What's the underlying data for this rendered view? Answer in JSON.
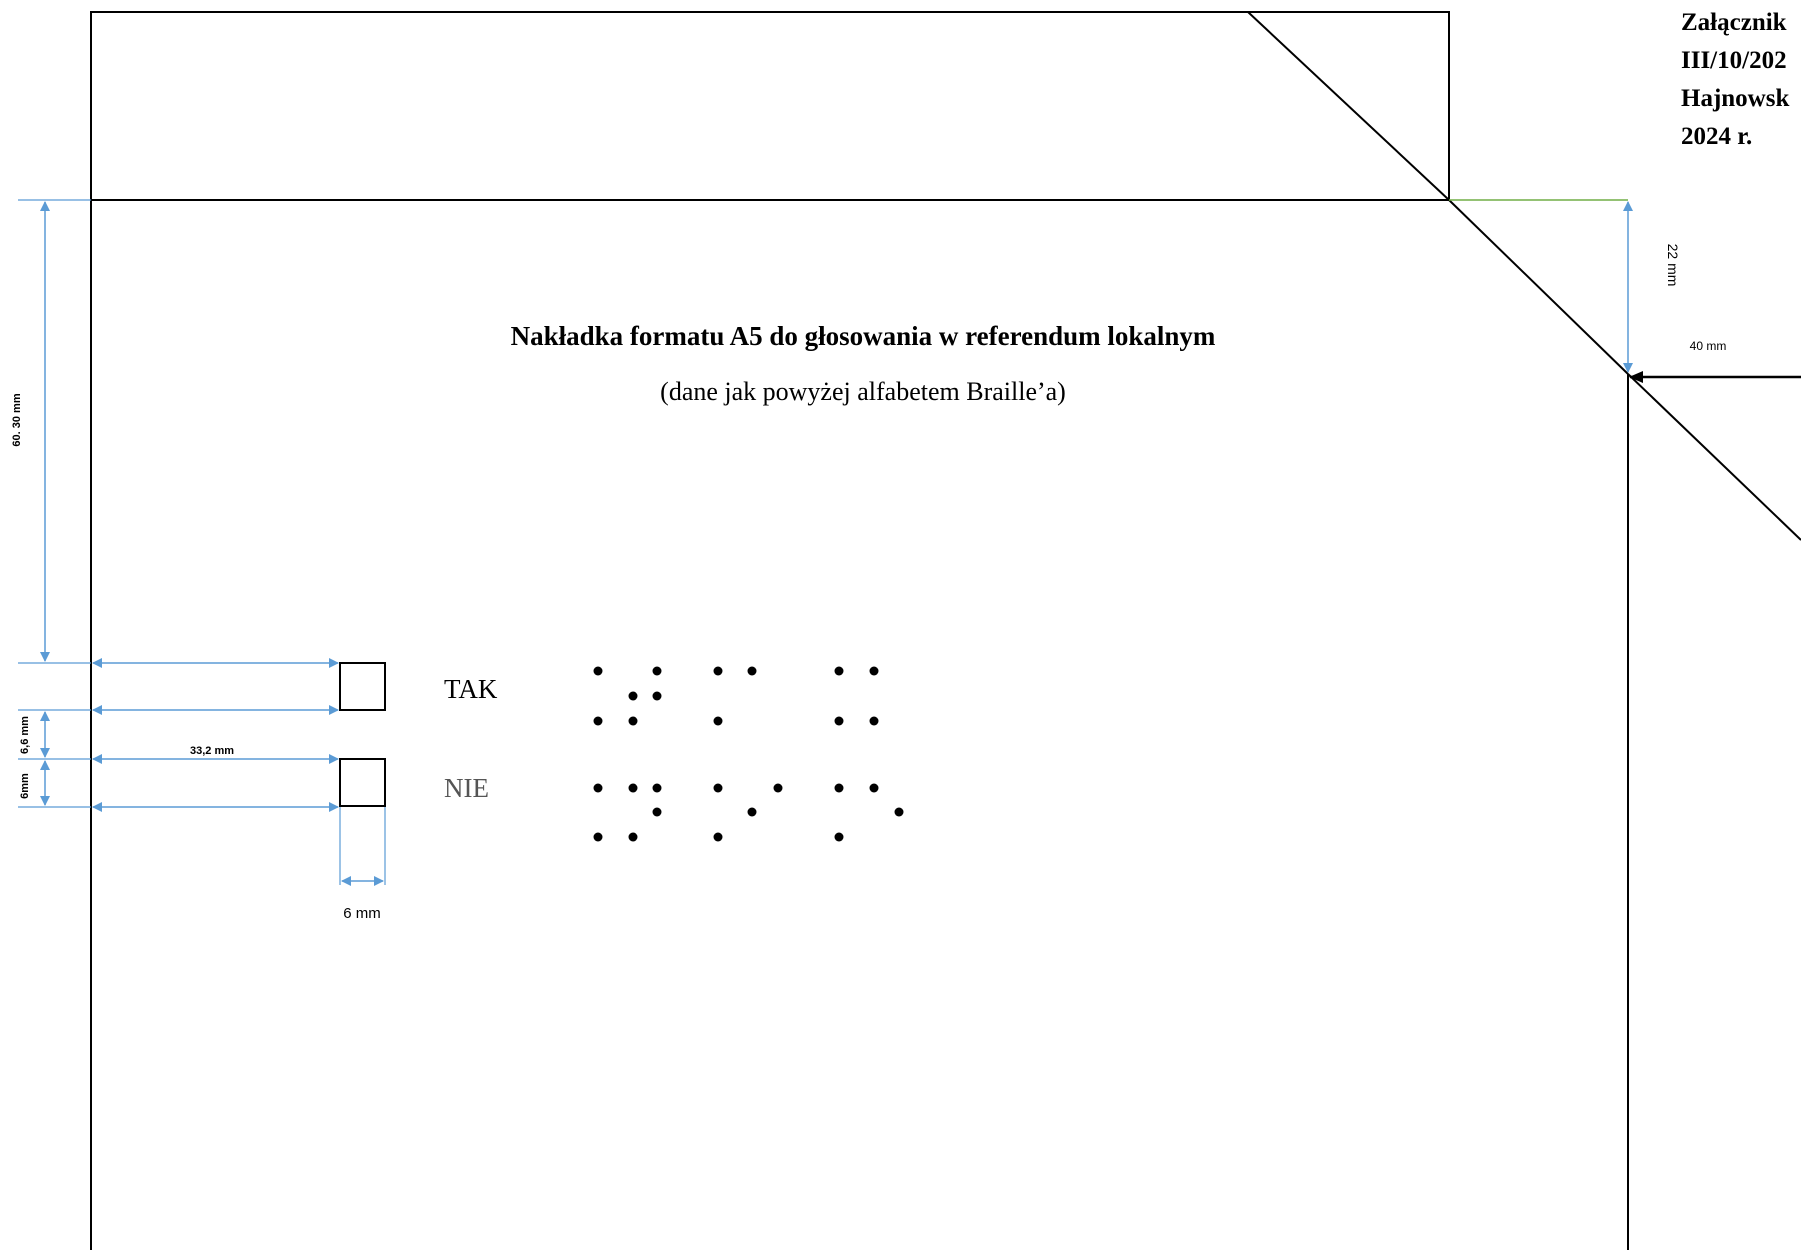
{
  "attachment_note": {
    "lines": [
      "Załącznik",
      "III/10/202",
      "Hajnowsk",
      "2024 r."
    ]
  },
  "overlay": {
    "title": "Nakładka formatu A5 do głosowania w referendum lokalnym",
    "subtitle": "(dane jak powyżej alfabetem Braille’a)"
  },
  "options": [
    {
      "label": "TAK",
      "braille": "⠞⠁⠅"
    },
    {
      "label": "NIE",
      "braille": "⠝⠊⠑"
    }
  ],
  "dimensions": {
    "top_offset": "60. 30 mm",
    "box_spacing": "6,6 mm",
    "box_height": "6mm",
    "left_offset": "33,2 mm",
    "box_width": "6 mm",
    "cut_top": "22 mm",
    "right_offset": "40 mm"
  },
  "colors": {
    "outline": "#000000",
    "dimension": "#5b9bd5",
    "guide": "#70ad47"
  }
}
